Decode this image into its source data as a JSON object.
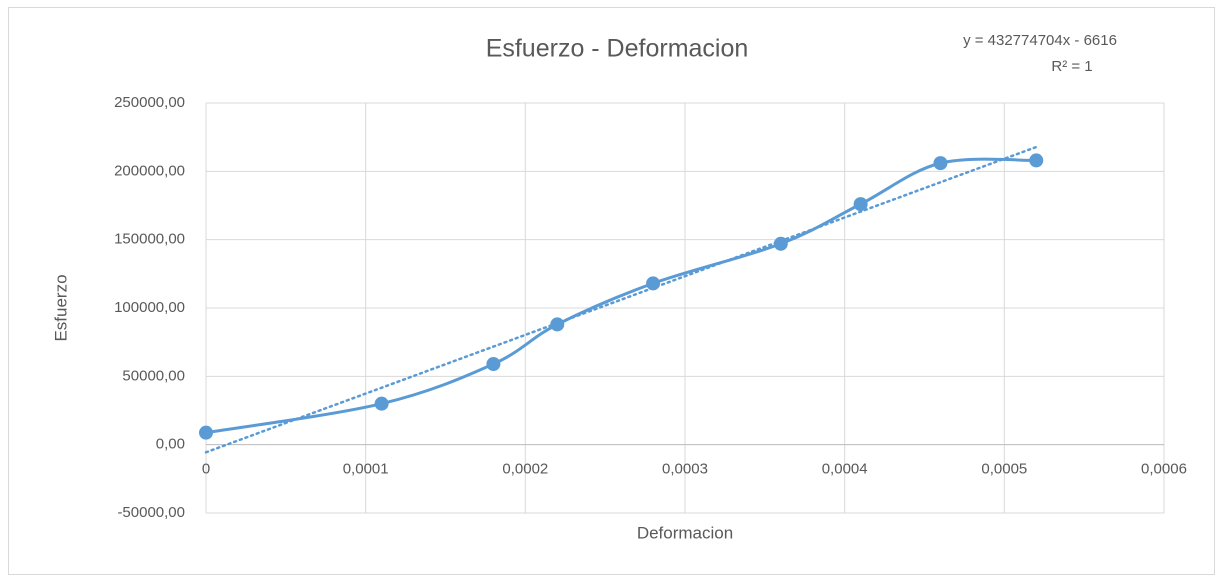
{
  "chart_data": {
    "type": "scatter",
    "title": "Esfuerzo - Deformacion",
    "x_label": "Deformacion",
    "y_label": "Esfuerzo",
    "x": [
      0,
      0.00011,
      0.00018,
      0.00022,
      0.00028,
      0.00036,
      0.00041,
      0.00046,
      0.00052
    ],
    "series": [
      {
        "name": "Esfuerzo",
        "color": "#5b9bd5",
        "values": [
          8800,
          30000,
          59000,
          88000,
          118000,
          147000,
          176000,
          206000,
          208000
        ]
      }
    ],
    "smooth": true,
    "trendline": {
      "kind": "linear",
      "color": "#5b9bd5",
      "equation": "y = 432774704x - 6616",
      "r_squared": "R² = 1"
    },
    "xlim": [
      0,
      0.0006
    ],
    "xticks": [
      0,
      {
        "value": 0.0001,
        "label": "0,0001"
      },
      {
        "value": 0.0002,
        "label": "0,0002"
      },
      {
        "value": 0.0003,
        "label": "0,0003"
      },
      {
        "value": 0.0004,
        "label": "0,0004"
      },
      {
        "value": 0.0005,
        "label": "0,0005"
      },
      {
        "value": 0.0006,
        "label": "0,0006"
      }
    ],
    "ylim": [
      -50000,
      250000
    ],
    "yticks": [
      {
        "value": -50000,
        "label": "-50000,00"
      },
      {
        "value": 0,
        "label": "0,00"
      },
      {
        "value": 50000,
        "label": "50000,00"
      },
      {
        "value": 100000,
        "label": "100000,00"
      },
      {
        "value": 150000,
        "label": "150000,00"
      },
      {
        "value": 200000,
        "label": "200000,00"
      },
      {
        "value": 250000,
        "label": "250000,00"
      }
    ],
    "grid": true
  }
}
